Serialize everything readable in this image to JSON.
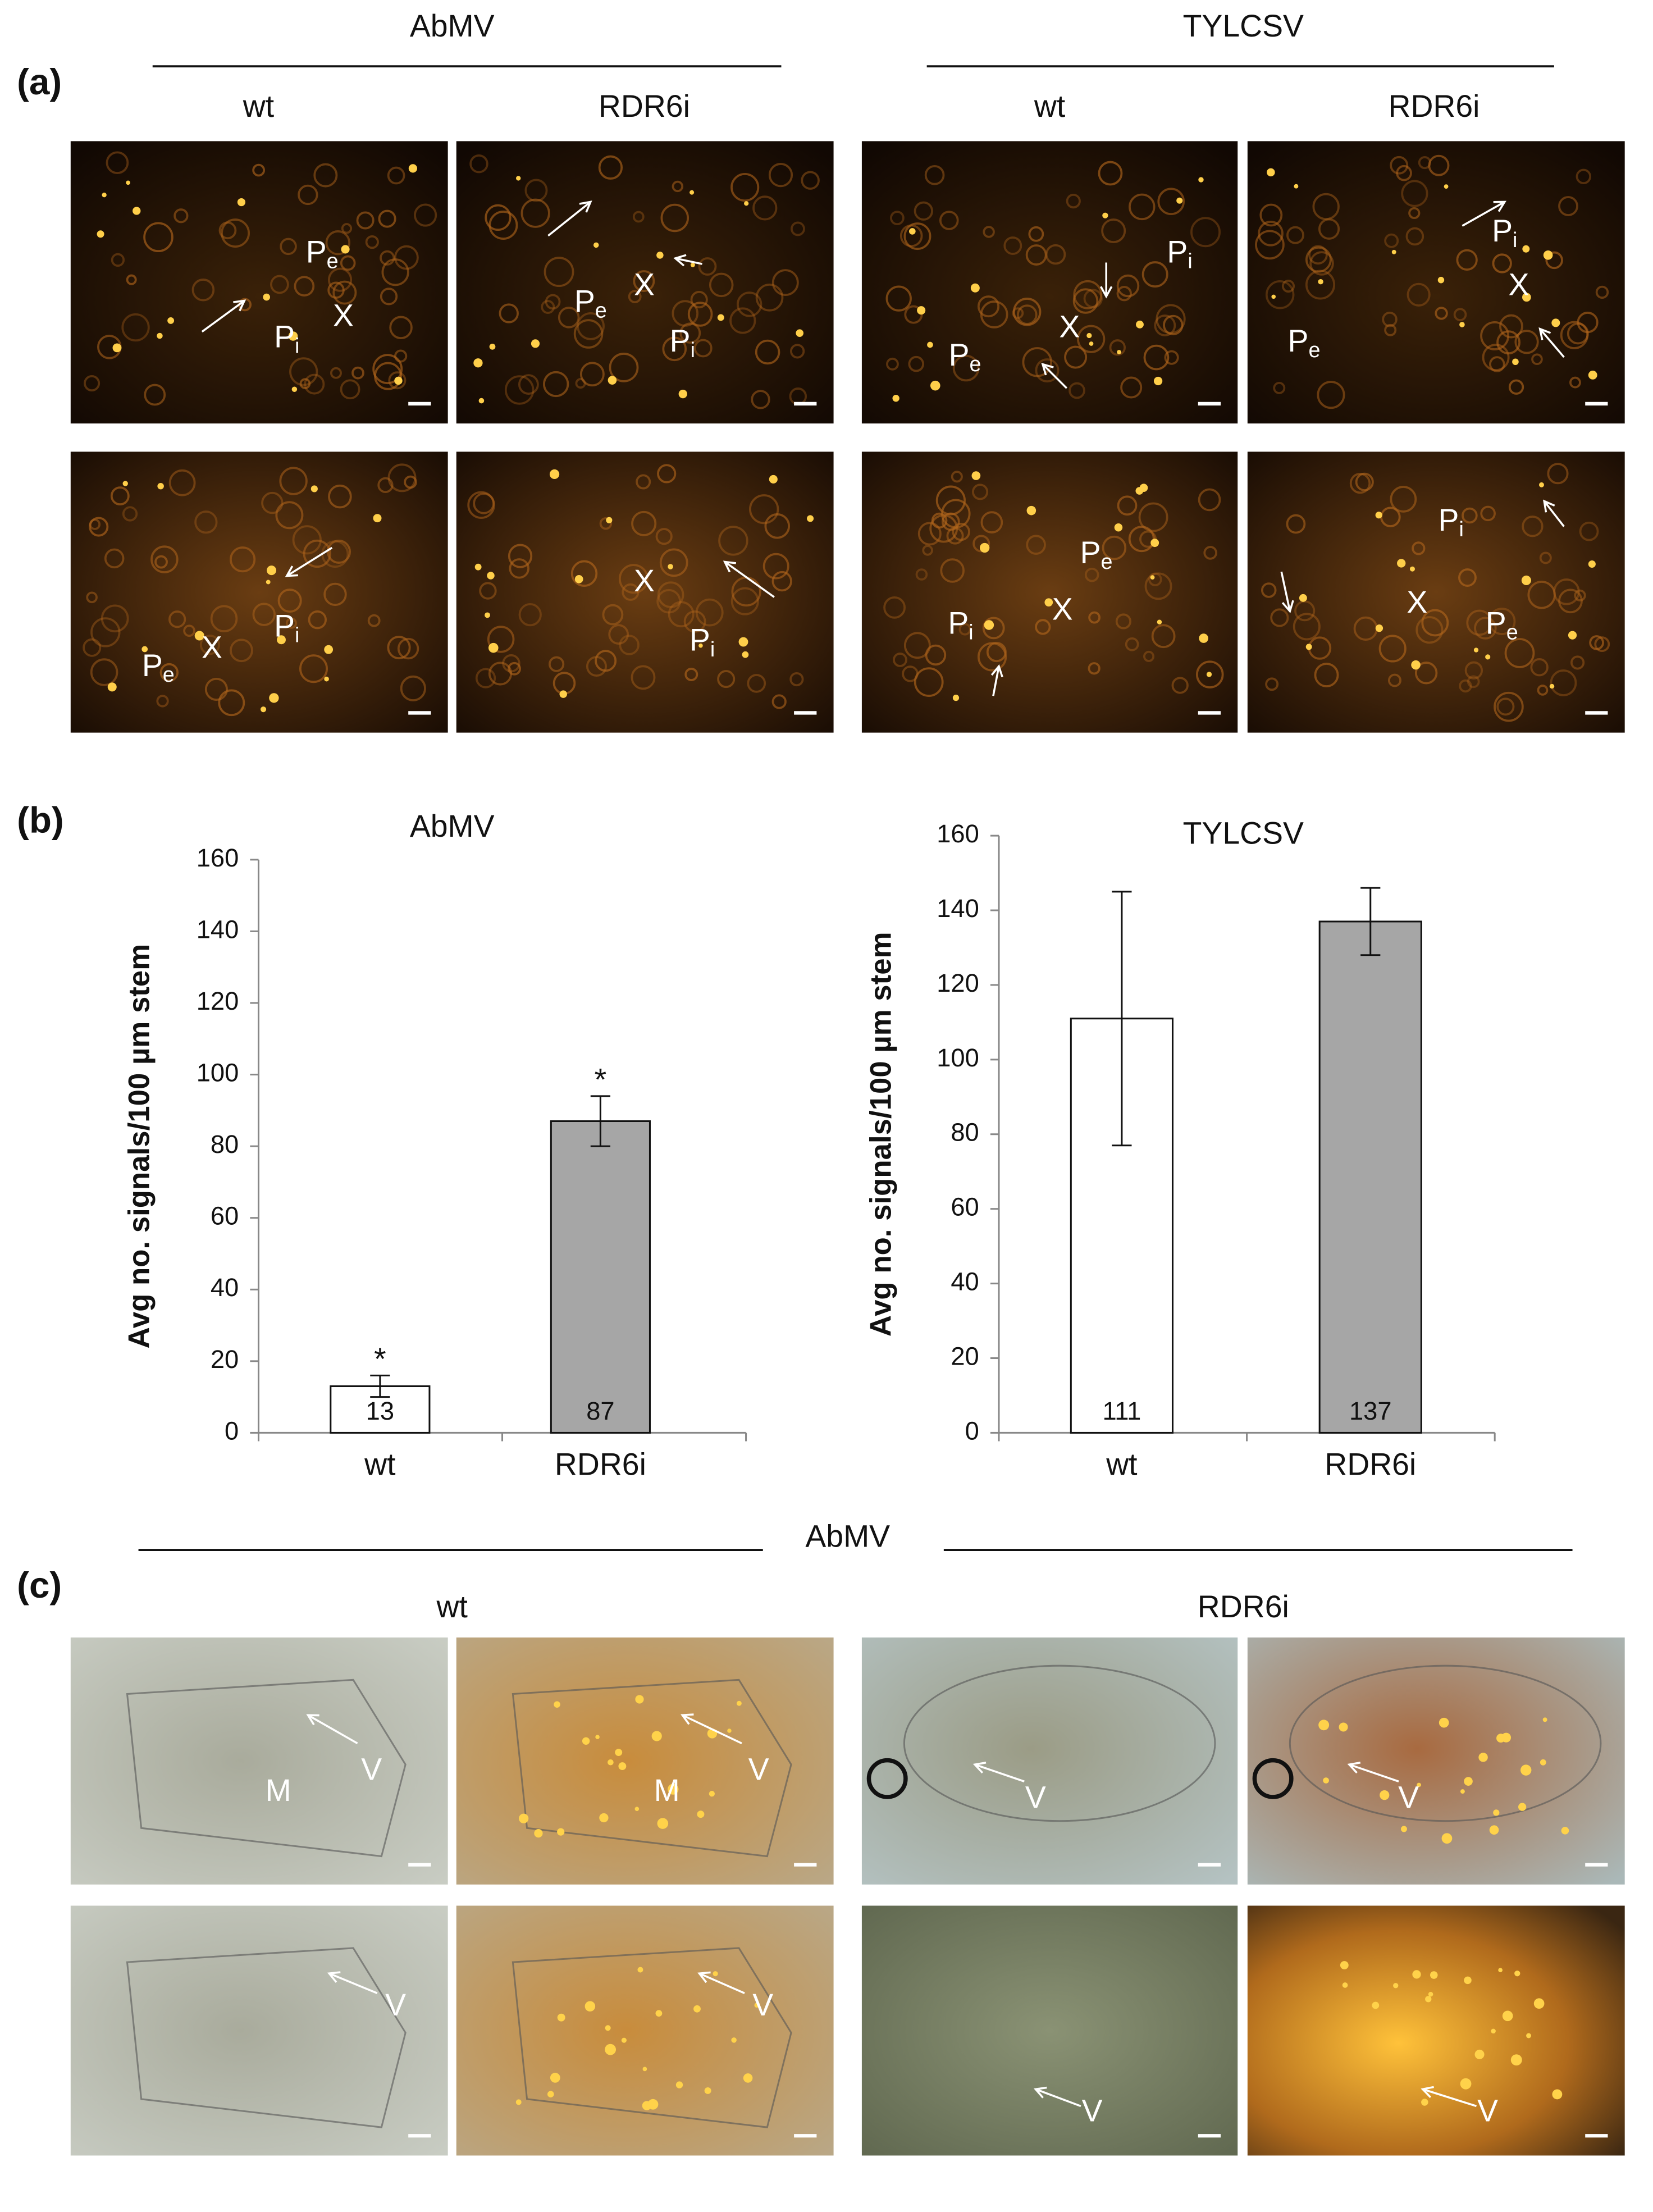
{
  "panel_a": {
    "label": "(a)",
    "groups": [
      {
        "name": "AbMV",
        "columns": [
          "wt",
          "RDR6i"
        ]
      },
      {
        "name": "TYLCSV",
        "columns": [
          "wt",
          "RDR6i"
        ]
      }
    ],
    "images": [
      {
        "labels": [
          {
            "text": "P",
            "sub": "e"
          },
          {
            "text": "X"
          },
          {
            "text": "P",
            "sub": "i"
          }
        ]
      },
      {
        "labels": [
          {
            "text": "P",
            "sub": "e"
          },
          {
            "text": "X"
          },
          {
            "text": "P",
            "sub": "i"
          }
        ]
      },
      {
        "labels": [
          {
            "text": "P",
            "sub": "i"
          },
          {
            "text": "X"
          },
          {
            "text": "P",
            "sub": "e"
          }
        ]
      },
      {
        "labels": [
          {
            "text": "P",
            "sub": "i"
          },
          {
            "text": "X"
          },
          {
            "text": "P",
            "sub": "e"
          }
        ]
      },
      {
        "labels": [
          {
            "text": "P",
            "sub": "e"
          },
          {
            "text": "X"
          },
          {
            "text": "P",
            "sub": "i"
          }
        ]
      },
      {
        "labels": [
          {
            "text": "X"
          },
          {
            "text": "P",
            "sub": "i"
          }
        ]
      },
      {
        "labels": [
          {
            "text": "P",
            "sub": "e"
          },
          {
            "text": "X"
          },
          {
            "text": "P",
            "sub": "i"
          }
        ]
      },
      {
        "labels": [
          {
            "text": "P",
            "sub": "i"
          },
          {
            "text": "X"
          },
          {
            "text": "P",
            "sub": "e"
          }
        ]
      }
    ]
  },
  "panel_b": {
    "label": "(b)"
  },
  "chart_data": [
    {
      "type": "bar",
      "title": "AbMV",
      "y_label": "Avg no. signals/100 µm stem",
      "categories": [
        "wt",
        "RDR6i"
      ],
      "values": [
        13,
        87
      ],
      "errors": [
        3,
        7
      ],
      "colors": [
        "#ffffff",
        "#a6a6a6"
      ],
      "annotations": [
        "*",
        "*"
      ],
      "ylim": [
        0,
        160
      ],
      "yticks": [
        0,
        20,
        40,
        60,
        80,
        100,
        120,
        140,
        160
      ]
    },
    {
      "type": "bar",
      "title": "TYLCSV",
      "y_label": "Avg no. signals/100 µm stem",
      "categories": [
        "wt",
        "RDR6i"
      ],
      "values": [
        111,
        137
      ],
      "errors": [
        34,
        9
      ],
      "colors": [
        "#ffffff",
        "#a6a6a6"
      ],
      "ylim": [
        0,
        160
      ],
      "yticks": [
        0,
        20,
        40,
        60,
        80,
        100,
        120,
        140,
        160
      ]
    }
  ],
  "panel_c": {
    "label": "(c)",
    "title": "AbMV",
    "columns": [
      "wt",
      "RDR6i"
    ],
    "images": [
      {
        "labels": [
          "M",
          "V"
        ]
      },
      {
        "labels": [
          "M",
          "V"
        ]
      },
      {
        "labels": [
          "V"
        ]
      },
      {
        "labels": [
          "V"
        ]
      },
      {
        "labels": [
          "V"
        ]
      },
      {
        "labels": [
          "V"
        ]
      },
      {
        "labels": [
          "V"
        ]
      },
      {
        "labels": [
          "V"
        ]
      }
    ]
  }
}
